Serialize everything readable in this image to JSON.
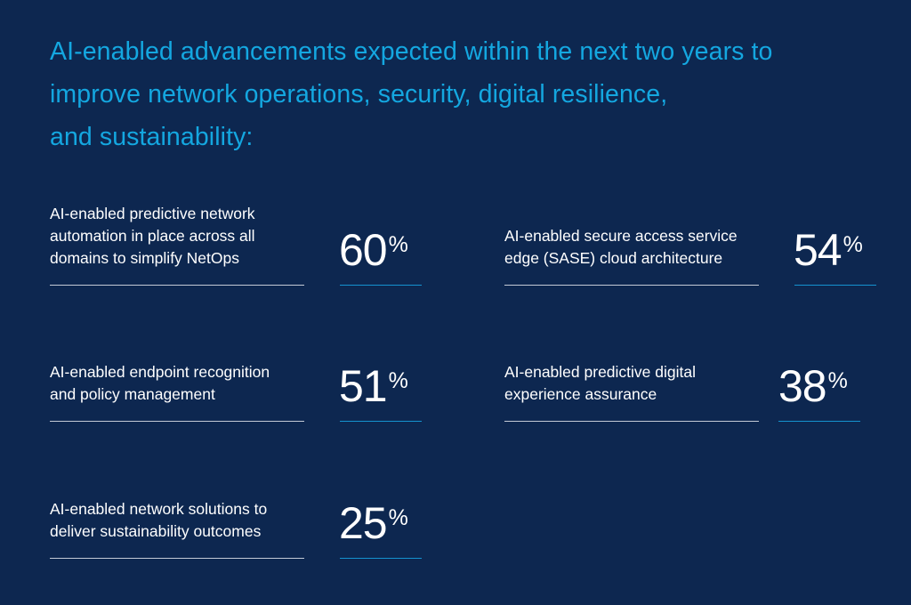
{
  "title": {
    "lines": [
      "AI-enabled advancements expected within the next two years to",
      "improve network operations, security, digital resilience,",
      "and sustainability:"
    ]
  },
  "stats": [
    {
      "label_lines": [
        "AI-enabled predictive network",
        "automation in place across all",
        "domains to simplify NetOps"
      ],
      "value": "60",
      "unit": "%"
    },
    {
      "label_lines": [
        "AI-enabled secure access service",
        "edge (SASE) cloud architecture"
      ],
      "value": "54",
      "unit": "%"
    },
    {
      "label_lines": [
        "AI-enabled endpoint recognition",
        "and policy management"
      ],
      "value": "51",
      "unit": "%"
    },
    {
      "label_lines": [
        "AI-enabled predictive digital",
        "experience assurance"
      ],
      "value": "38",
      "unit": "%"
    },
    {
      "label_lines": [
        "AI-enabled network solutions to",
        "deliver sustainability outcomes"
      ],
      "value": "25",
      "unit": "%"
    }
  ],
  "colors": {
    "background": "#0d2750",
    "title": "#14a7e0",
    "text": "#ffffff",
    "value_rule": "#1592cf"
  }
}
